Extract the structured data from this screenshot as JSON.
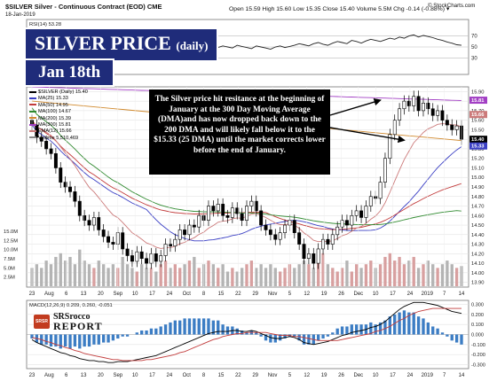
{
  "header": {
    "symbol_title": "$SILVER Silver - Continuous Contract (EOD) CME",
    "date": "18-Jan-2019",
    "ohlc": "Open 15.59  High 15.60  Low 15.35  Close 15.40  Volume 5.5M  Chg -0.14 (-0.88%) ▾",
    "watermark": "© StockCharts.com"
  },
  "banner": {
    "title": "SILVER PRICE",
    "subtitle": "(daily)",
    "date_label": "Jan 18th"
  },
  "callout": {
    "text": "The Silver price hit resitance at the beginning of January at the 300 Day Moving Average (DMA)and has now dropped back down to the 200 DMA and will likely fall below it to the $15.33 (25 DMA) until the market corrects lower before the end of January."
  },
  "logo": {
    "line1": "SRSrocco",
    "line2": "REPORT",
    "badge": "SRSR"
  },
  "colors": {
    "up": "#ffffff",
    "down": "#000000",
    "grid": "#dddddd",
    "volume": "#b4b4b4",
    "volume_up": "#d8a0a0"
  },
  "chart_data": [
    {
      "type": "line",
      "name": "rsi_panel",
      "legend_label": "RSI(14) 53.28",
      "ylim": [
        0,
        100
      ],
      "y_ticks": [
        30,
        50,
        70
      ],
      "values": [
        58,
        55,
        50,
        45,
        42,
        38,
        36,
        34,
        32,
        31,
        30,
        33,
        35,
        37,
        36,
        34,
        33,
        35,
        37,
        34,
        36,
        38,
        37,
        35,
        38,
        40,
        42,
        39,
        41,
        44,
        42,
        40,
        43,
        45,
        47,
        45,
        48,
        50,
        47,
        49,
        52,
        50,
        48,
        53,
        51,
        49,
        47,
        52,
        50,
        48,
        46,
        50,
        52,
        49,
        51,
        53,
        56,
        54,
        52,
        56,
        58,
        55,
        53,
        57,
        60,
        58,
        56,
        62,
        60,
        57,
        61,
        64,
        62,
        60,
        63,
        66,
        64,
        68,
        66,
        70,
        72,
        68,
        71,
        69,
        67,
        64,
        62,
        59,
        57,
        54,
        53
      ]
    },
    {
      "type": "candlestick",
      "name": "price_panel",
      "legend": [
        {
          "label": "$SILVER (Daily) 15.40",
          "color": "#000000"
        },
        {
          "label": "MA(25) 15.33",
          "color": "#3a3fc4"
        },
        {
          "label": "MA(50) 14.95",
          "color": "#c23b3b"
        },
        {
          "label": "MA(100) 14.67",
          "color": "#2f8a2f"
        },
        {
          "label": "MA(200) 15.39",
          "color": "#d18a2e"
        },
        {
          "label": "MA(300) 15.81",
          "color": "#a23fc4"
        },
        {
          "label": "EMA(12) 15.66",
          "color": "#cc7a7a"
        },
        {
          "label": "Volume 5,510,469",
          "color": "#888888"
        }
      ],
      "y_ticks": [
        13.9,
        14.0,
        14.1,
        14.2,
        14.3,
        14.4,
        14.5,
        14.6,
        14.7,
        14.8,
        14.9,
        15.0,
        15.1,
        15.2,
        15.3,
        15.4,
        15.5,
        15.6,
        15.7,
        15.8,
        15.9
      ],
      "ylim": [
        13.85,
        15.95
      ],
      "tag_labels": [
        {
          "text": "15.81",
          "value": 15.81,
          "color": "#a23fc4"
        },
        {
          "text": "15.66",
          "value": 15.66,
          "color": "#cc7a7a"
        },
        {
          "text": "15.40",
          "value": 15.4,
          "color": "#000000"
        },
        {
          "text": "15.33",
          "value": 15.33,
          "color": "#3a3fc4"
        }
      ],
      "volume_ticks": [
        "15.0M",
        "12.5M",
        "10.0M",
        "7.5M",
        "5.0M",
        "2.5M"
      ],
      "volume_max_millions": 15,
      "x_ticks": [
        "23",
        "Aug",
        "6",
        "13",
        "20",
        "Sep",
        "10",
        "17",
        "24",
        "Oct",
        "8",
        "15",
        "22",
        "29",
        "Nov",
        "5",
        "12",
        "19",
        "26",
        "Dec",
        "10",
        "17",
        "24",
        "2019",
        "7",
        "14"
      ],
      "close": [
        15.55,
        15.42,
        15.38,
        15.3,
        15.25,
        15.1,
        14.95,
        14.9,
        14.85,
        14.75,
        14.6,
        14.55,
        14.5,
        14.58,
        14.45,
        14.38,
        14.32,
        14.3,
        14.42,
        14.25,
        14.18,
        14.12,
        14.22,
        14.15,
        14.1,
        14.2,
        14.12,
        14.18,
        14.3,
        14.28,
        14.35,
        14.45,
        14.4,
        14.5,
        14.48,
        14.6,
        14.55,
        14.7,
        14.65,
        14.72,
        14.6,
        14.58,
        14.68,
        14.62,
        14.55,
        14.7,
        14.75,
        14.65,
        14.5,
        14.45,
        14.4,
        14.35,
        14.42,
        14.5,
        14.55,
        14.42,
        14.3,
        14.15,
        14.2,
        14.1,
        14.25,
        14.35,
        14.3,
        14.4,
        14.48,
        14.55,
        14.5,
        14.6,
        14.65,
        14.58,
        14.7,
        14.8,
        14.78,
        14.95,
        15.2,
        15.45,
        15.6,
        15.72,
        15.8,
        15.75,
        15.85,
        15.7,
        15.78,
        15.72,
        15.65,
        15.7,
        15.6,
        15.55,
        15.5,
        15.54,
        15.4
      ],
      "volume_millions": [
        5,
        6,
        5,
        7,
        6,
        8,
        9,
        7,
        8,
        6,
        10,
        7,
        6,
        5,
        7,
        6,
        5,
        6,
        5,
        8,
        6,
        5,
        4,
        6,
        5,
        5,
        4,
        6,
        7,
        5,
        6,
        5,
        6,
        7,
        8,
        5,
        6,
        7,
        6,
        5,
        6,
        4,
        5,
        4,
        5,
        6,
        7,
        5,
        6,
        5,
        6,
        5,
        4,
        5,
        6,
        5,
        6,
        7,
        6,
        5,
        8,
        9,
        6,
        5,
        4,
        5,
        7,
        4,
        6,
        5,
        6,
        7,
        5,
        6,
        8,
        9,
        7,
        8,
        6,
        7,
        8,
        5,
        6,
        7,
        6,
        5,
        6,
        7,
        6,
        5,
        5.5
      ],
      "annotation_arrows": [
        {
          "from": "callout",
          "to_value": 15.81,
          "target": "MA(300)"
        },
        {
          "from": "callout",
          "to_value": 15.39,
          "target": "MA(200)"
        }
      ]
    },
    {
      "type": "macd",
      "name": "macd_panel",
      "legend_label": "MACD(12,26,9) 0.209, 0.260, -0.051",
      "y_ticks": [
        "0.300",
        "0.200",
        "0.100",
        "0.000",
        "-0.100",
        "-0.200",
        "-0.300"
      ],
      "ylim": [
        -0.34,
        0.34
      ],
      "macd": [
        -0.05,
        -0.08,
        -0.1,
        -0.12,
        -0.14,
        -0.16,
        -0.18,
        -0.19,
        -0.21,
        -0.22,
        -0.24,
        -0.25,
        -0.26,
        -0.26,
        -0.27,
        -0.27,
        -0.28,
        -0.28,
        -0.27,
        -0.27,
        -0.27,
        -0.26,
        -0.25,
        -0.24,
        -0.23,
        -0.22,
        -0.21,
        -0.19,
        -0.17,
        -0.15,
        -0.13,
        -0.11,
        -0.09,
        -0.07,
        -0.05,
        -0.03,
        -0.01,
        0.01,
        0.02,
        0.03,
        0.03,
        0.03,
        0.04,
        0.04,
        0.03,
        0.03,
        0.04,
        0.03,
        0.01,
        -0.01,
        -0.03,
        -0.04,
        -0.04,
        -0.03,
        -0.02,
        -0.03,
        -0.05,
        -0.08,
        -0.09,
        -0.1,
        -0.09,
        -0.08,
        -0.07,
        -0.05,
        -0.03,
        -0.01,
        0.0,
        0.02,
        0.03,
        0.04,
        0.05,
        0.07,
        0.08,
        0.1,
        0.13,
        0.17,
        0.21,
        0.25,
        0.28,
        0.3,
        0.32,
        0.32,
        0.32,
        0.31,
        0.3,
        0.29,
        0.27,
        0.25,
        0.23,
        0.22,
        0.21
      ],
      "signal": [
        -0.03,
        -0.04,
        -0.05,
        -0.07,
        -0.08,
        -0.1,
        -0.11,
        -0.13,
        -0.14,
        -0.16,
        -0.17,
        -0.19,
        -0.2,
        -0.21,
        -0.22,
        -0.23,
        -0.24,
        -0.25,
        -0.25,
        -0.26,
        -0.26,
        -0.26,
        -0.26,
        -0.26,
        -0.25,
        -0.25,
        -0.24,
        -0.23,
        -0.22,
        -0.21,
        -0.2,
        -0.18,
        -0.17,
        -0.15,
        -0.13,
        -0.11,
        -0.09,
        -0.07,
        -0.05,
        -0.04,
        -0.02,
        -0.01,
        0.0,
        0.01,
        0.01,
        0.02,
        0.02,
        0.02,
        0.02,
        0.02,
        0.01,
        0.0,
        -0.01,
        -0.01,
        -0.01,
        -0.02,
        -0.02,
        -0.03,
        -0.04,
        -0.05,
        -0.06,
        -0.06,
        -0.06,
        -0.06,
        -0.06,
        -0.05,
        -0.04,
        -0.03,
        -0.02,
        -0.01,
        0.0,
        0.01,
        0.03,
        0.04,
        0.06,
        0.08,
        0.11,
        0.14,
        0.16,
        0.19,
        0.21,
        0.23,
        0.24,
        0.25,
        0.26,
        0.26,
        0.26,
        0.26,
        0.26,
        0.26,
        0.26
      ]
    }
  ]
}
